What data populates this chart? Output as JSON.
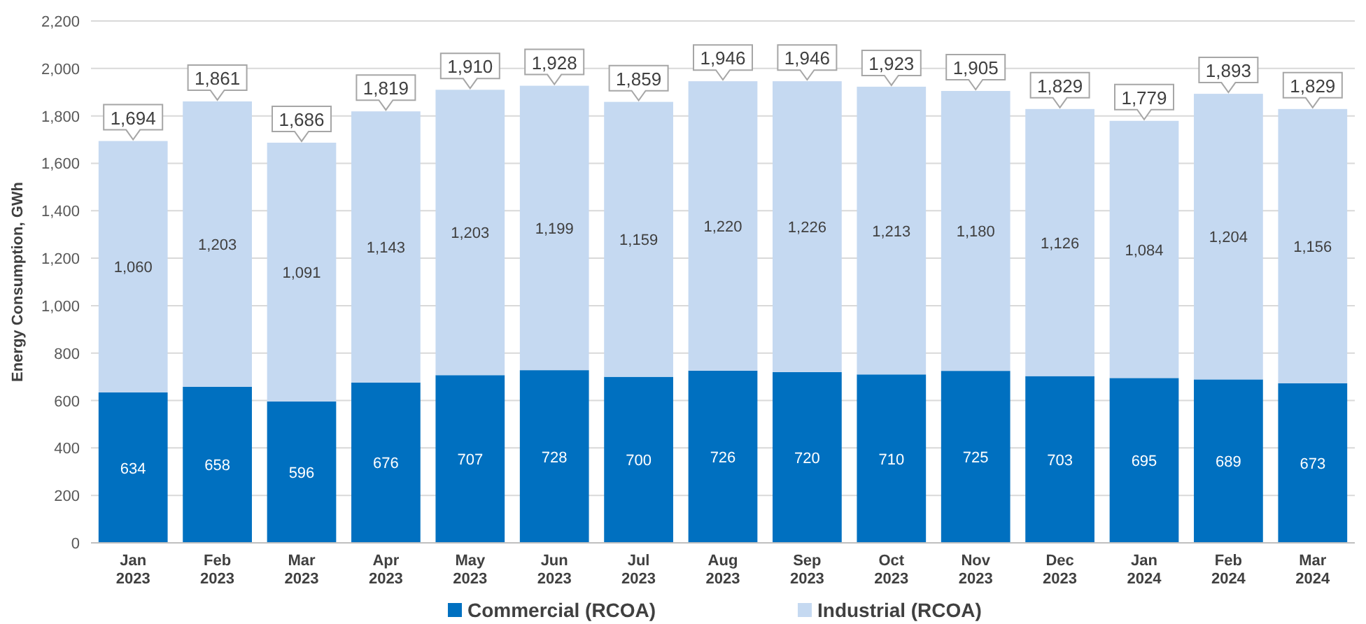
{
  "chart_data": {
    "type": "bar",
    "stacked": true,
    "ylabel": "Energy Consumption, GWh",
    "categories": [
      "Jan 2023",
      "Feb 2023",
      "Mar 2023",
      "Apr 2023",
      "May 2023",
      "Jun 2023",
      "Jul 2023",
      "Aug 2023",
      "Sep 2023",
      "Oct 2023",
      "Nov 2023",
      "Dec 2023",
      "Jan 2024",
      "Feb 2024",
      "Mar 2024"
    ],
    "series": [
      {
        "name": "Commercial (RCOA)",
        "color": "#0070c0",
        "values": [
          634,
          658,
          596,
          676,
          707,
          728,
          700,
          726,
          720,
          710,
          725,
          703,
          695,
          689,
          673
        ]
      },
      {
        "name": "Industrial (RCOA)",
        "color": "#c5d9f1",
        "values": [
          1060,
          1203,
          1091,
          1143,
          1203,
          1199,
          1159,
          1220,
          1226,
          1213,
          1180,
          1126,
          1084,
          1204,
          1156
        ],
        "value_labels": [
          "1,060",
          "1,203",
          "1,091",
          "1,143",
          "1,203",
          "1,199",
          "1,159",
          "1,220",
          "1,226",
          "1,213",
          "1,180",
          "1,126",
          "1,084",
          "1,204",
          "1,156"
        ]
      }
    ],
    "totals": [
      "1,694",
      "1,861",
      "1,686",
      "1,819",
      "1,910",
      "1,928",
      "1,859",
      "1,946",
      "1,946",
      "1,923",
      "1,905",
      "1,829",
      "1,779",
      "1,893",
      "1,829"
    ],
    "data_labels": true,
    "ylim": [
      0,
      2200
    ],
    "yticks": [
      0,
      200,
      400,
      600,
      800,
      {
        "value": 1000,
        "label": "1,000"
      },
      {
        "value": 1200,
        "label": "1,200"
      },
      {
        "value": 1400,
        "label": "1,400"
      },
      {
        "value": 1600,
        "label": "1,600"
      },
      {
        "value": 1800,
        "label": "1,800"
      },
      {
        "value": 2000,
        "label": "2,000"
      },
      {
        "value": 2200,
        "label": "2,200"
      }
    ],
    "grid": "y",
    "legend": "bottom"
  }
}
